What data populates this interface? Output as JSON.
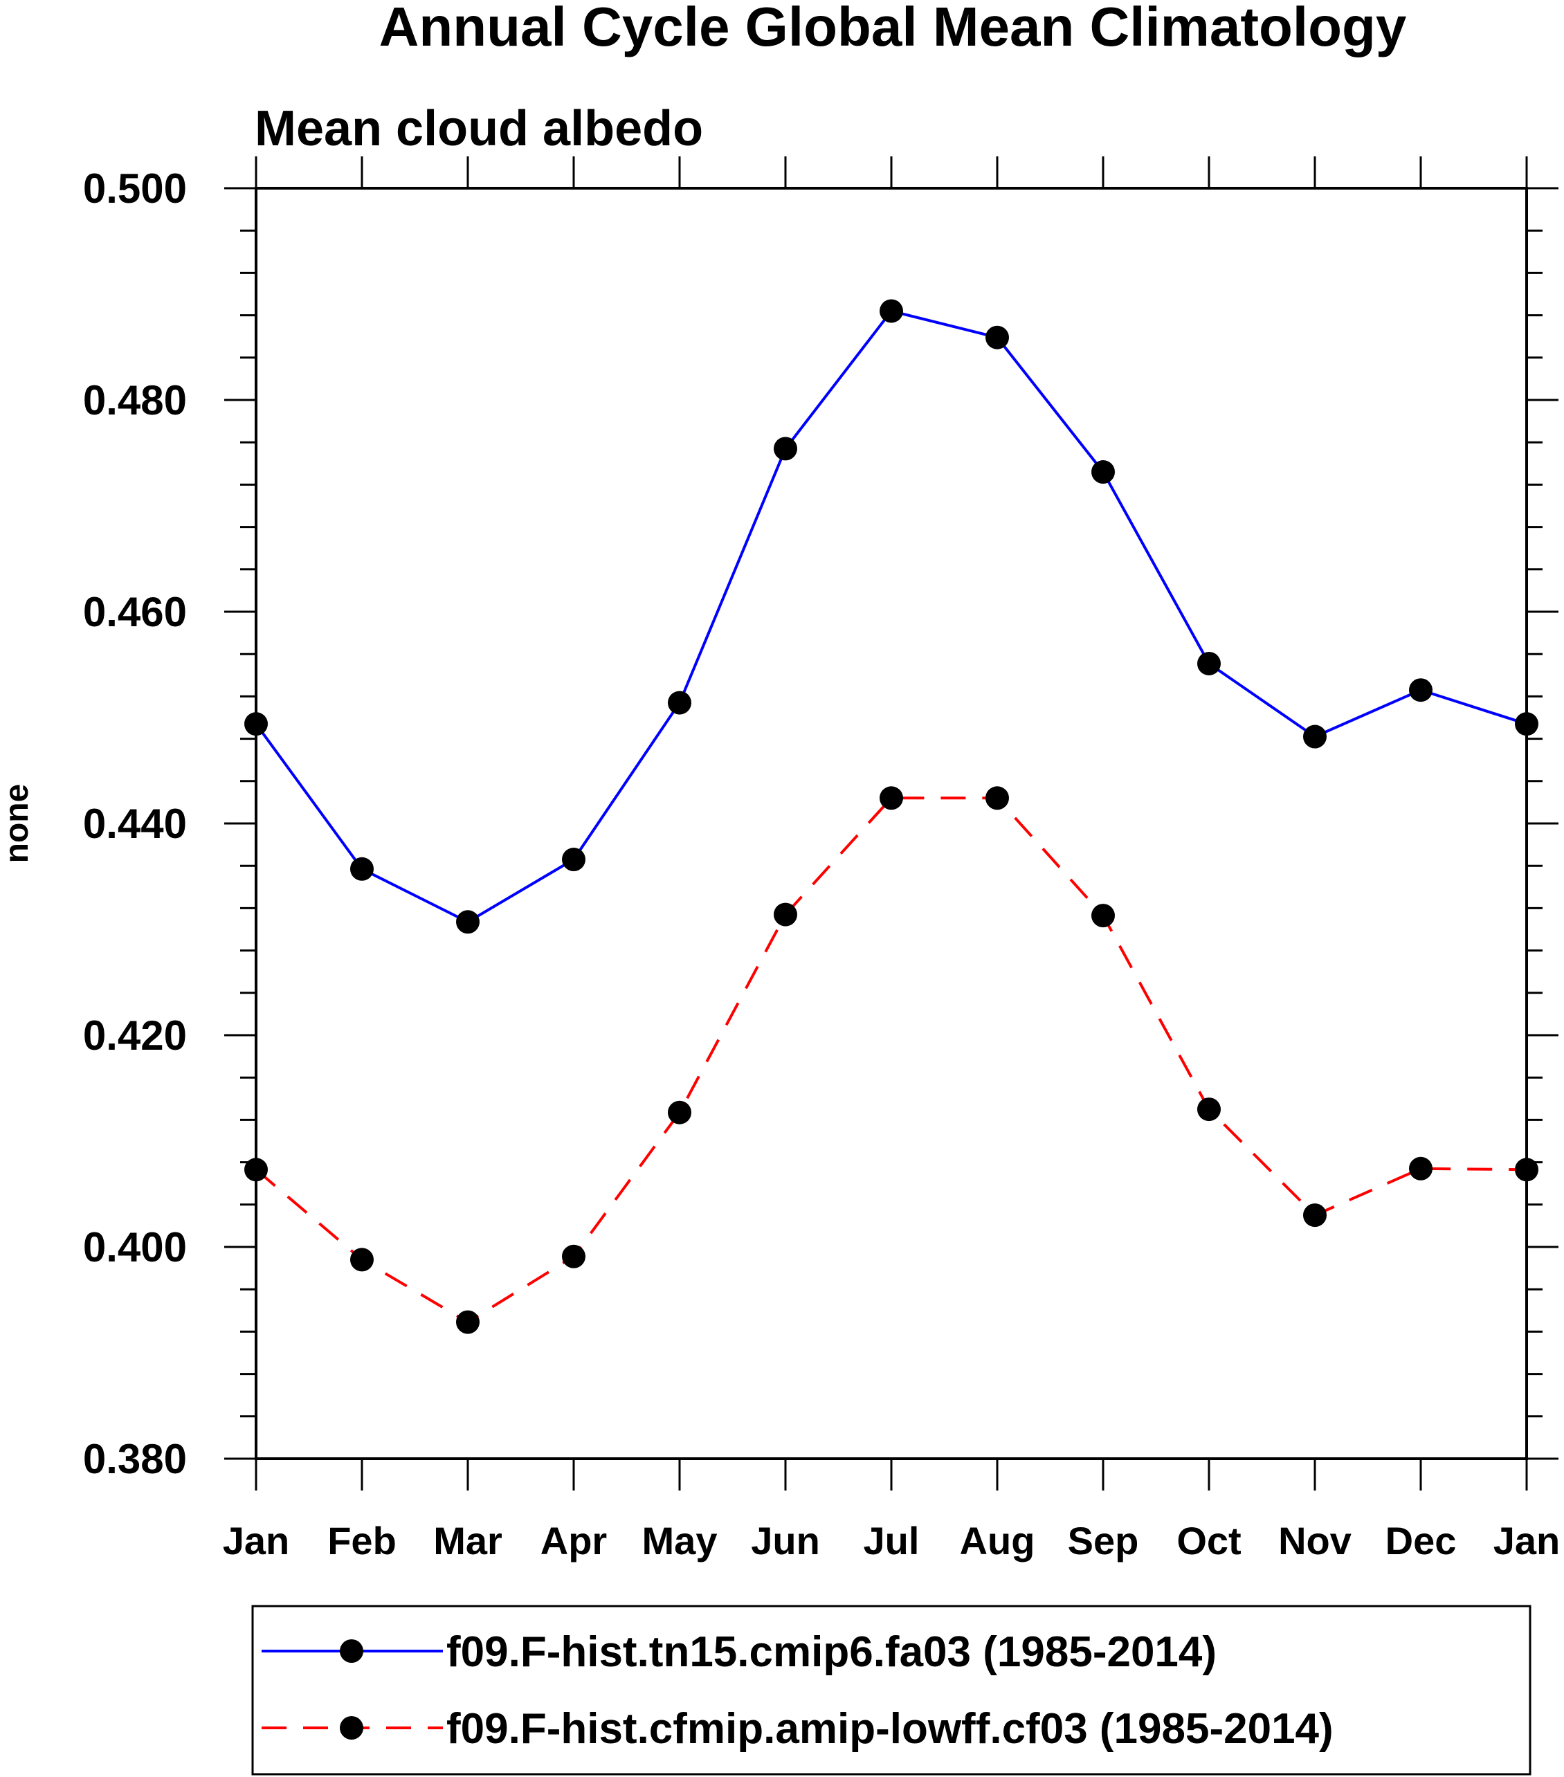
{
  "chart_data": {
    "type": "line",
    "title": "Annual Cycle Global Mean Climatology",
    "subtitle": "Mean cloud albedo",
    "xlabel": "",
    "ylabel": "none",
    "ylim": [
      0.38,
      0.5
    ],
    "y_ticks": [
      "0.380",
      "0.400",
      "0.420",
      "0.440",
      "0.460",
      "0.480",
      "0.500"
    ],
    "categories": [
      "Jan",
      "Feb",
      "Mar",
      "Apr",
      "May",
      "Jun",
      "Jul",
      "Aug",
      "Sep",
      "Oct",
      "Nov",
      "Dec",
      "Jan"
    ],
    "grid": false,
    "legend_position": "bottom",
    "series": [
      {
        "name": "f09.F-hist.tn15.cmip6.fa03 (1985-2014)",
        "color": "#0000ff",
        "dash": "solid",
        "marker": "filled-circle",
        "values": [
          0.4494,
          0.4357,
          0.4307,
          0.4366,
          0.4514,
          0.4754,
          0.4884,
          0.4859,
          0.4732,
          0.4551,
          0.4482,
          0.4526,
          0.4494
        ]
      },
      {
        "name": "f09.F-hist.cfmip.amip-lowff.cf03 (1985-2014)",
        "color": "#ff0000",
        "dash": "dashed",
        "marker": "filled-circle",
        "values": [
          0.4073,
          0.3988,
          0.3929,
          0.3991,
          0.4127,
          0.4314,
          0.4424,
          0.4424,
          0.4313,
          0.413,
          0.403,
          0.4074,
          0.4073
        ]
      }
    ]
  }
}
